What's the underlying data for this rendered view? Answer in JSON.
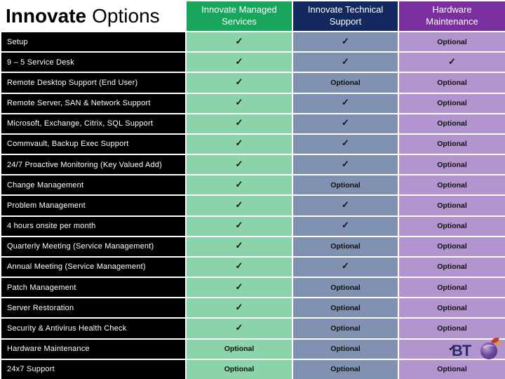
{
  "title": {
    "bold": "Innovate",
    "regular": "Options"
  },
  "colors": {
    "background": "#ffffff",
    "label_row_bg": "#000000",
    "label_text": "#ffffff",
    "value_text": "#111111",
    "grid_line": "#ffffff"
  },
  "columns": [
    {
      "label": "Innovate Managed Services",
      "header_bg": "#18a55c",
      "cell_bg": "#8bd4a9"
    },
    {
      "label": "Innovate Technical Support",
      "header_bg": "#12285e",
      "cell_bg": "#8191b2"
    },
    {
      "label": "Hardware Maintenance",
      "header_bg": "#7a2f9f",
      "cell_bg": "#b294cf"
    }
  ],
  "check_glyph": "✓",
  "optional_label": "Optional",
  "rows": [
    {
      "label": "Setup",
      "values": [
        "check",
        "check",
        "optional"
      ]
    },
    {
      "label": "9 – 5 Service Desk",
      "values": [
        "check",
        "check",
        "check"
      ]
    },
    {
      "label": "Remote Desktop Support (End User)",
      "values": [
        "check",
        "optional",
        "optional"
      ]
    },
    {
      "label": "Remote Server, SAN & Network Support",
      "values": [
        "check",
        "check",
        "optional"
      ]
    },
    {
      "label": "Microsoft, Exchange, Citrix, SQL Support",
      "values": [
        "check",
        "check",
        "optional"
      ]
    },
    {
      "label": "Commvault, Backup Exec Support",
      "values": [
        "check",
        "check",
        "optional"
      ]
    },
    {
      "label": "24/7 Proactive Monitoring (Key Valued Add)",
      "values": [
        "check",
        "check",
        "optional"
      ]
    },
    {
      "label": "Change Management",
      "values": [
        "check",
        "optional",
        "optional"
      ]
    },
    {
      "label": "Problem Management",
      "values": [
        "check",
        "check",
        "optional"
      ]
    },
    {
      "label": "4 hours onsite per month",
      "values": [
        "check",
        "check",
        "optional"
      ]
    },
    {
      "label": "Quarterly Meeting (Service Management)",
      "values": [
        "check",
        "optional",
        "optional"
      ]
    },
    {
      "label": "Annual Meeting (Service Management)",
      "values": [
        "check",
        "check",
        "optional"
      ]
    },
    {
      "label": "Patch Management",
      "values": [
        "check",
        "optional",
        "optional"
      ]
    },
    {
      "label": "Server Restoration",
      "values": [
        "check",
        "optional",
        "optional"
      ]
    },
    {
      "label": "Security & Antivirus Health Check",
      "values": [
        "check",
        "optional",
        "optional"
      ]
    },
    {
      "label": "Hardware Maintenance",
      "values": [
        "optional",
        "optional",
        "check"
      ]
    },
    {
      "label": "24x7 Support",
      "values": [
        "optional",
        "optional",
        "optional"
      ]
    }
  ],
  "logo": {
    "text": "BT",
    "text_color": "#2b2a6c",
    "globe_purple": "#5a3390",
    "globe_light": "#9d7cc4",
    "swoosh_red": "#c23b2e",
    "swoosh_orange": "#dd9a3c"
  }
}
